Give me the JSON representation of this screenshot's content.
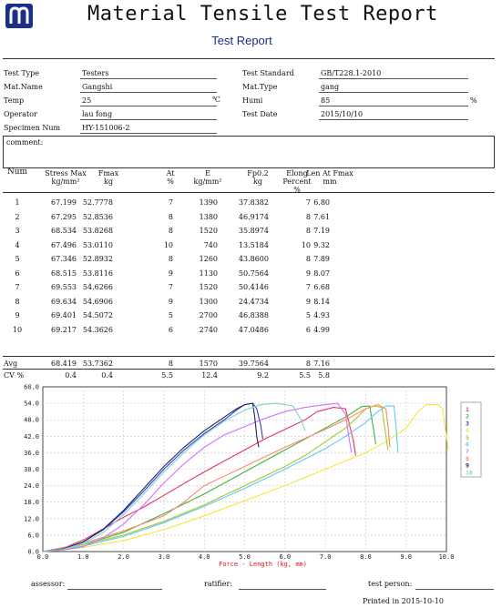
{
  "header": {
    "title": "Material Tensile Test Report",
    "subtitle": "Test Report"
  },
  "info": {
    "test_type_label": "Test Type",
    "test_type": "Testers",
    "mat_name_label": "Mat.Name",
    "mat_name": "Gangshi",
    "temp_label": "Temp",
    "temp": "25",
    "temp_unit": "℃",
    "operator_label": "Operator",
    "operator": "lau fong",
    "specimen_label": "Specimen Num",
    "specimen": "HY-151006-2",
    "standard_label": "Test Standard",
    "standard": "GB/T228.1-2010",
    "mat_type_label": "Mat.Type",
    "mat_type": "gang",
    "humi_label": "Humi",
    "humi": "85",
    "humi_unit": "%",
    "date_label": "Test Date",
    "date": "2015/10/10",
    "comment_label": "comment:"
  },
  "table": {
    "headers": [
      {
        "l1": "Num",
        "l2": "",
        "l3": ""
      },
      {
        "l1": "Stress Max",
        "l2": "kg/mm²",
        "l3": ""
      },
      {
        "l1": "Fmax",
        "l2": "kg",
        "l3": ""
      },
      {
        "l1": "At",
        "l2": "%",
        "l3": ""
      },
      {
        "l1": "E",
        "l2": "kg/mm²",
        "l3": ""
      },
      {
        "l1": "Fp0.2",
        "l2": "kg",
        "l3": ""
      },
      {
        "l1": "Elong",
        "l2": "Percent",
        "l3": "%"
      },
      {
        "l1": "Len At Fmax",
        "l2": "mm",
        "l3": ""
      }
    ],
    "rows": [
      [
        "1",
        "67.199",
        "52.7778",
        "7",
        "1390",
        "37.8382",
        "7",
        "6.80"
      ],
      [
        "2",
        "67.295",
        "52.8536",
        "8",
        "1380",
        "46.9174",
        "8",
        "7.61"
      ],
      [
        "3",
        "68.534",
        "53.8268",
        "8",
        "1520",
        "35.8974",
        "8",
        "7.19"
      ],
      [
        "4",
        "67.496",
        "53.0110",
        "10",
        "740",
        "13.5184",
        "10",
        "9.32"
      ],
      [
        "5",
        "67.346",
        "52.8932",
        "8",
        "1260",
        "43.8600",
        "8",
        "7.89"
      ],
      [
        "6",
        "68.515",
        "53.8116",
        "9",
        "1130",
        "50.7564",
        "9",
        "8.07"
      ],
      [
        "7",
        "69.553",
        "54.6266",
        "7",
        "1520",
        "50.4146",
        "7",
        "6.68"
      ],
      [
        "8",
        "69.634",
        "54.6906",
        "9",
        "1300",
        "24.4734",
        "9",
        "8.14"
      ],
      [
        "9",
        "69.401",
        "54.5072",
        "5",
        "2700",
        "46.8388",
        "5",
        "4.93"
      ],
      [
        "10",
        "69.217",
        "54.3626",
        "6",
        "2740",
        "47.0486",
        "6",
        "4.99"
      ]
    ],
    "avg_label": "Avg",
    "avg": [
      "68.419",
      "53.7362",
      "8",
      "1570",
      "39.7564",
      "8",
      "7.16"
    ],
    "cv_label": "CV %",
    "cv": [
      "0.4",
      "0.4",
      "5.5",
      "12.4",
      "9.2",
      "5.5",
      "5.8"
    ]
  },
  "chart_data": {
    "type": "line",
    "xlabel": "Force - Length (kg, mm)",
    "xlim": [
      0,
      10
    ],
    "ylim": [
      0,
      60
    ],
    "x_ticks": [
      "0.0",
      "1.0",
      "2.0",
      "3.0",
      "4.0",
      "5.0",
      "6.0",
      "7.0",
      "8.0",
      "9.0",
      "10.0"
    ],
    "y_ticks": [
      "0.0",
      "6.0",
      "12.0",
      "18.0",
      "24.0",
      "30.0",
      "36.0",
      "42.0",
      "48.0",
      "54.0",
      "60.0"
    ],
    "grid": true,
    "legend_placement": "right",
    "series": [
      {
        "name": "1",
        "color": "#e8325a",
        "points": [
          [
            0,
            0
          ],
          [
            0.5,
            1.2
          ],
          [
            1,
            4.2
          ],
          [
            1.5,
            8.3
          ],
          [
            2,
            12.5
          ],
          [
            2.5,
            16.2
          ],
          [
            3,
            20.5
          ],
          [
            3.5,
            24.8
          ],
          [
            4,
            29
          ],
          [
            4.5,
            33
          ],
          [
            5,
            37
          ],
          [
            5.5,
            41
          ],
          [
            6,
            44.5
          ],
          [
            6.5,
            48
          ],
          [
            6.8,
            51
          ],
          [
            7.2,
            52.5
          ],
          [
            7.5,
            52
          ],
          [
            7.7,
            40
          ],
          [
            7.75,
            35
          ]
        ]
      },
      {
        "name": "2",
        "color": "#3db23d",
        "points": [
          [
            0,
            0
          ],
          [
            1,
            2.5
          ],
          [
            2,
            7
          ],
          [
            3,
            13.8
          ],
          [
            4,
            21
          ],
          [
            5,
            29
          ],
          [
            5.5,
            33
          ],
          [
            6,
            37
          ],
          [
            6.5,
            41
          ],
          [
            7,
            45
          ],
          [
            7.5,
            49
          ],
          [
            7.9,
            52.8
          ],
          [
            8.1,
            53
          ],
          [
            8.2,
            44
          ],
          [
            8.25,
            39
          ]
        ]
      },
      {
        "name": "3",
        "color": "#2d3dc8",
        "points": [
          [
            0,
            0
          ],
          [
            0.5,
            1
          ],
          [
            1,
            3.5
          ],
          [
            1.5,
            8
          ],
          [
            2,
            14.5
          ],
          [
            2.5,
            22
          ],
          [
            3,
            30
          ],
          [
            3.5,
            37
          ],
          [
            4,
            43
          ],
          [
            4.5,
            48
          ],
          [
            4.8,
            51.5
          ],
          [
            5,
            53.5
          ],
          [
            5.2,
            54
          ],
          [
            5.3,
            52
          ],
          [
            5.4,
            46
          ],
          [
            5.45,
            41
          ]
        ]
      },
      {
        "name": "4",
        "color": "#f2e83a",
        "points": [
          [
            0,
            0
          ],
          [
            1,
            1.5
          ],
          [
            2,
            4
          ],
          [
            3,
            8
          ],
          [
            4,
            13
          ],
          [
            5,
            18.5
          ],
          [
            6,
            24
          ],
          [
            7,
            30
          ],
          [
            8,
            36
          ],
          [
            8.5,
            40
          ],
          [
            9,
            45
          ],
          [
            9.3,
            51
          ],
          [
            9.5,
            53.5
          ],
          [
            9.8,
            53.5
          ],
          [
            9.9,
            52
          ],
          [
            10,
            42
          ],
          [
            10.05,
            37
          ]
        ]
      },
      {
        "name": "5",
        "color": "#a0cc28",
        "points": [
          [
            0,
            0
          ],
          [
            1,
            2.5
          ],
          [
            2,
            6
          ],
          [
            3,
            11
          ],
          [
            4,
            17
          ],
          [
            5,
            24
          ],
          [
            6,
            31
          ],
          [
            6.5,
            35
          ],
          [
            7,
            40
          ],
          [
            7.5,
            45
          ],
          [
            7.8,
            49
          ],
          [
            8,
            52
          ],
          [
            8.2,
            53
          ],
          [
            8.4,
            52.5
          ],
          [
            8.5,
            42
          ],
          [
            8.55,
            37
          ]
        ]
      },
      {
        "name": "6",
        "color": "#60c8ff",
        "points": [
          [
            0,
            0
          ],
          [
            1,
            2
          ],
          [
            2,
            5.5
          ],
          [
            3,
            10.5
          ],
          [
            4,
            16.5
          ],
          [
            5,
            23
          ],
          [
            6,
            30
          ],
          [
            7,
            37.5
          ],
          [
            7.5,
            42
          ],
          [
            8,
            47
          ],
          [
            8.3,
            51
          ],
          [
            8.5,
            53
          ],
          [
            8.7,
            53
          ],
          [
            8.75,
            46
          ],
          [
            8.8,
            36
          ]
        ]
      },
      {
        "name": "7",
        "color": "#d070ff",
        "points": [
          [
            0,
            0
          ],
          [
            0.5,
            0.5
          ],
          [
            1,
            1.8
          ],
          [
            1.5,
            5
          ],
          [
            2,
            10
          ],
          [
            2.5,
            17
          ],
          [
            3,
            25
          ],
          [
            3.5,
            32
          ],
          [
            4,
            38
          ],
          [
            4.5,
            42.5
          ],
          [
            5,
            45.5
          ],
          [
            5.5,
            48.5
          ],
          [
            6,
            51
          ],
          [
            6.5,
            52.5
          ],
          [
            7,
            53.5
          ],
          [
            7.3,
            54
          ],
          [
            7.5,
            50
          ],
          [
            7.6,
            40
          ],
          [
            7.65,
            36
          ]
        ]
      },
      {
        "name": "8",
        "color": "#ff8866",
        "points": [
          [
            0,
            0
          ],
          [
            1,
            3
          ],
          [
            2,
            7.5
          ],
          [
            3,
            13
          ],
          [
            3.5,
            18
          ],
          [
            4,
            24
          ],
          [
            5,
            31
          ],
          [
            6,
            38
          ],
          [
            7,
            44.5
          ],
          [
            7.5,
            48
          ],
          [
            8,
            52
          ],
          [
            8.3,
            53.5
          ],
          [
            8.5,
            52
          ],
          [
            8.55,
            46
          ],
          [
            8.6,
            38
          ]
        ]
      },
      {
        "name": "9",
        "color": "#222266",
        "points": [
          [
            0,
            0
          ],
          [
            0.5,
            1
          ],
          [
            1,
            3.5
          ],
          [
            1.5,
            8.2
          ],
          [
            2,
            15
          ],
          [
            2.5,
            23
          ],
          [
            3,
            31
          ],
          [
            3.5,
            38
          ],
          [
            4,
            44
          ],
          [
            4.5,
            49
          ],
          [
            4.8,
            52
          ],
          [
            5,
            53.5
          ],
          [
            5.2,
            54
          ],
          [
            5.25,
            49
          ],
          [
            5.3,
            42
          ],
          [
            5.35,
            38
          ]
        ]
      },
      {
        "name": "10",
        "color": "#7dd4c9",
        "points": [
          [
            0,
            0
          ],
          [
            0.5,
            0.8
          ],
          [
            1,
            3
          ],
          [
            1.5,
            7
          ],
          [
            2,
            13.5
          ],
          [
            2.5,
            21
          ],
          [
            3,
            29
          ],
          [
            3.5,
            36
          ],
          [
            4,
            42.5
          ],
          [
            4.5,
            47.5
          ],
          [
            5,
            51.5
          ],
          [
            5.4,
            53.5
          ],
          [
            5.8,
            54
          ],
          [
            6.2,
            53
          ],
          [
            6.4,
            48
          ],
          [
            6.5,
            44
          ]
        ]
      }
    ]
  },
  "footer": {
    "assessor_label": "assessor:",
    "ratifier_label": "ratifier:",
    "tester_label": "test person:",
    "printed": "Printed in 2015-10-10"
  }
}
